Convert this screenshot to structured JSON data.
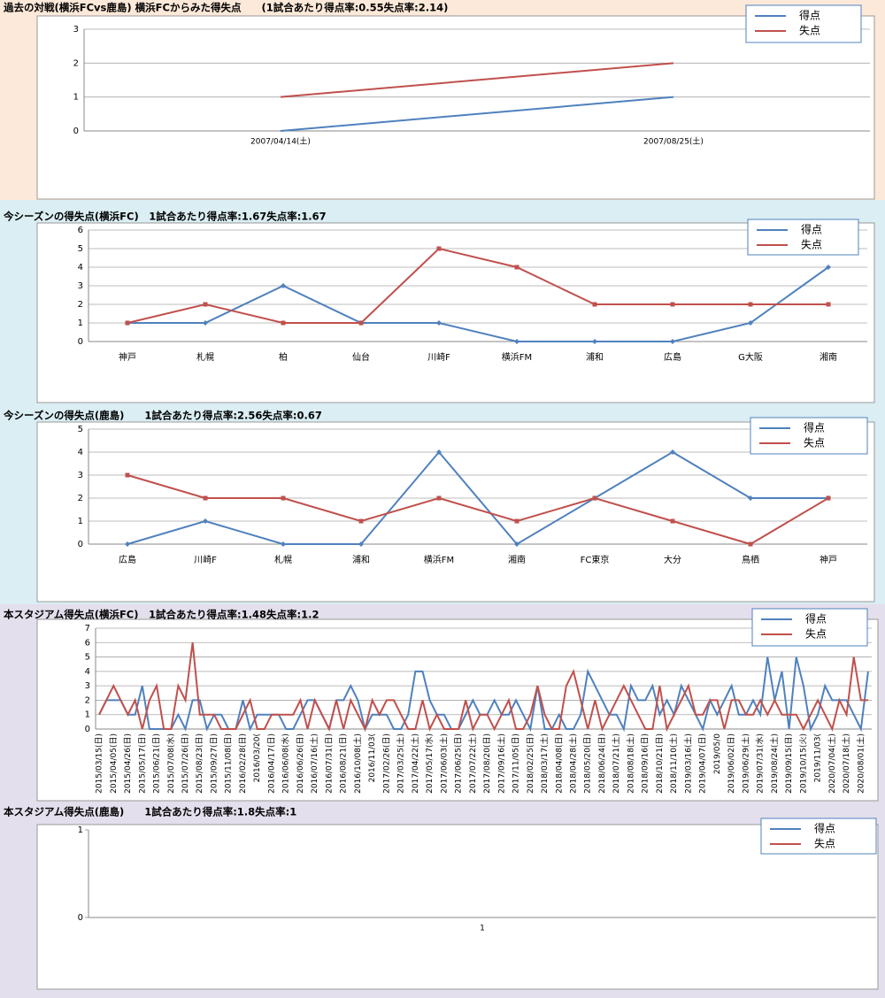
{
  "chart_data": [
    {
      "type": "line",
      "title": "過去の対戦(横浜FCvs鹿島)  横浜FCからみた得失点　　(1試合あたり得点率:0.55失点率:2.14)",
      "categories": [
        "2007/04/14(土)",
        "2007/08/25(土)"
      ],
      "series": [
        {
          "name": "得点",
          "color": "#4f81bd",
          "values": [
            0,
            1
          ]
        },
        {
          "name": "失点",
          "color": "#c0504d",
          "values": [
            1,
            2
          ]
        }
      ],
      "ylim": [
        0,
        3
      ],
      "yticks": [
        0,
        1,
        2,
        3
      ],
      "grid": true,
      "markers": false,
      "legend": "top-right"
    },
    {
      "type": "line",
      "title": "今シーズンの得失点(横浜FC)　1試合あたり得点率:1.67失点率:1.67",
      "categories": [
        "神戸",
        "札幌",
        "柏",
        "仙台",
        "川崎F",
        "横浜FM",
        "浦和",
        "広島",
        "G大阪",
        "湘南"
      ],
      "series": [
        {
          "name": "得点",
          "color": "#4f81bd",
          "values": [
            1,
            1,
            3,
            1,
            1,
            0,
            0,
            0,
            1,
            4
          ]
        },
        {
          "name": "失点",
          "color": "#c0504d",
          "values": [
            1,
            2,
            1,
            1,
            5,
            4,
            2,
            2,
            2,
            2
          ]
        }
      ],
      "ylim": [
        0,
        6
      ],
      "yticks": [
        0,
        1,
        2,
        3,
        4,
        5,
        6
      ],
      "grid": true,
      "markers": true,
      "legend": "top-right"
    },
    {
      "type": "line",
      "title": "今シーズンの得失点(鹿島)　　1試合あたり得点率:2.56失点率:0.67",
      "categories": [
        "広島",
        "川崎F",
        "札幌",
        "浦和",
        "横浜FM",
        "湘南",
        "FC東京",
        "大分",
        "鳥栖",
        "神戸"
      ],
      "series": [
        {
          "name": "得点",
          "color": "#4f81bd",
          "values": [
            0,
            1,
            0,
            0,
            4,
            0,
            2,
            4,
            2,
            2
          ]
        },
        {
          "name": "失点",
          "color": "#c0504d",
          "values": [
            3,
            2,
            2,
            1,
            2,
            1,
            2,
            1,
            0,
            2
          ]
        }
      ],
      "ylim": [
        0,
        5
      ],
      "yticks": [
        0,
        1,
        2,
        3,
        4,
        5
      ],
      "grid": true,
      "markers": true,
      "legend": "top-right"
    },
    {
      "type": "line",
      "title": "本スタジアム得失点(横浜FC)　1試合あたり得点率:1.48失点率:1.2",
      "categories": [
        "2015/03/15(日)",
        null,
        "2015/04/05(日)",
        null,
        "2015/04/26(日)",
        null,
        "2015/05/17(日)",
        null,
        "2015/06/21(日)",
        null,
        "2015/07/08(水)",
        null,
        "2015/07/26(日)",
        null,
        "2015/08/23(日)",
        null,
        "2015/09/27(日)",
        null,
        "2015/11/08(日)",
        null,
        "2016/02/28(日)",
        null,
        "2016/03/20(",
        null,
        "2016/04/17(日)",
        null,
        "2016/06/08(水)",
        null,
        "2016/06/26(日)",
        null,
        "2016/07/16(土)",
        null,
        "2016/07/31(日)",
        null,
        "2016/08/21(日)",
        null,
        "2016/10/08(土)",
        null,
        "2016/11/03(",
        null,
        "2017/02/26(日)",
        null,
        "2017/03/25(土)",
        null,
        "2017/04/22(土)",
        null,
        "2017/05/17(水)",
        null,
        "2017/06/03(土)",
        null,
        "2017/06/25(日)",
        null,
        "2017/07/22(土)",
        null,
        "2017/08/20(日)",
        null,
        "2017/09/16(土)",
        null,
        "2017/11/05(日)",
        null,
        "2018/02/25(日)",
        null,
        "2018/03/17(土)",
        null,
        "2018/04/08(日)",
        null,
        "2018/04/28(土)",
        null,
        "2018/05/20(日)",
        null,
        "2018/06/24(日)",
        null,
        "2018/07/21(土)",
        null,
        "2018/08/18(土)",
        null,
        "2018/09/16(日)",
        null,
        "2018/10/21(日)",
        null,
        "2018/11/10(土)",
        null,
        "2019/03/16(土)",
        null,
        "2019/04/07(日)",
        null,
        "2019/05/0",
        null,
        "2019/06/02(日)",
        null,
        "2019/06/29(土)",
        null,
        "2019/07/31(水)",
        null,
        "2019/08/24(土)",
        null,
        "2019/09/15(日)",
        null,
        "2019/10/15(火)",
        null,
        "2019/11/03(",
        null,
        "2020/07/04(土)",
        null,
        "2020/07/18(土)",
        null,
        "2020/08/01(土)",
        null
      ],
      "series": [
        {
          "name": "得点",
          "color": "#4f81bd",
          "values": [
            1,
            2,
            2,
            2,
            1,
            1,
            3,
            0,
            0,
            0,
            0,
            1,
            0,
            2,
            2,
            0,
            1,
            1,
            0,
            0,
            2,
            0,
            1,
            1,
            1,
            1,
            0,
            0,
            1,
            2,
            2,
            1,
            0,
            2,
            2,
            3,
            2,
            0,
            1,
            1,
            1,
            0,
            0,
            1,
            4,
            4,
            2,
            1,
            1,
            0,
            0,
            1,
            2,
            1,
            1,
            2,
            1,
            1,
            2,
            1,
            0,
            3,
            0,
            0,
            1,
            0,
            0,
            1,
            4,
            3,
            2,
            1,
            1,
            0,
            3,
            2,
            2,
            3,
            1,
            2,
            1,
            3,
            2,
            1,
            0,
            2,
            1,
            2,
            3,
            1,
            1,
            2,
            1,
            5,
            2,
            4,
            0,
            5,
            3,
            0,
            1,
            3,
            2,
            2,
            2,
            1,
            0,
            4
          ]
        },
        {
          "name": "失点",
          "color": "#c0504d",
          "values": [
            1,
            2,
            3,
            2,
            1,
            2,
            0,
            2,
            3,
            0,
            0,
            3,
            2,
            6,
            1,
            1,
            1,
            0,
            0,
            0,
            1,
            2,
            0,
            0,
            1,
            1,
            1,
            1,
            2,
            0,
            2,
            1,
            0,
            2,
            0,
            2,
            1,
            0,
            2,
            1,
            2,
            2,
            1,
            0,
            0,
            2,
            0,
            1,
            0,
            0,
            0,
            2,
            0,
            1,
            1,
            0,
            1,
            2,
            0,
            0,
            1,
            3,
            1,
            0,
            0,
            3,
            4,
            2,
            0,
            2,
            0,
            1,
            2,
            3,
            2,
            1,
            0,
            0,
            3,
            0,
            1,
            2,
            3,
            1,
            1,
            2,
            2,
            0,
            2,
            2,
            1,
            1,
            2,
            1,
            2,
            1,
            1,
            1,
            0,
            1,
            2,
            1,
            0,
            2,
            1,
            5,
            2,
            2
          ]
        }
      ],
      "ylim": [
        0,
        7
      ],
      "yticks": [
        0,
        1,
        2,
        3,
        4,
        5,
        6,
        7
      ],
      "grid": true,
      "markers": false,
      "rotate_labels": true,
      "legend": "top-right"
    },
    {
      "type": "line",
      "title": "本スタジアム得失点(鹿島)　　1試合あたり得点率:1.8失点率:1",
      "categories": [
        "1"
      ],
      "series": [
        {
          "name": "得点",
          "color": "#4f81bd",
          "values": [
            null
          ]
        },
        {
          "name": "失点",
          "color": "#c0504d",
          "values": [
            null
          ]
        }
      ],
      "ylim": [
        0,
        1
      ],
      "yticks": [
        0,
        1
      ],
      "grid": false,
      "markers": false,
      "legend": "top-right"
    }
  ]
}
